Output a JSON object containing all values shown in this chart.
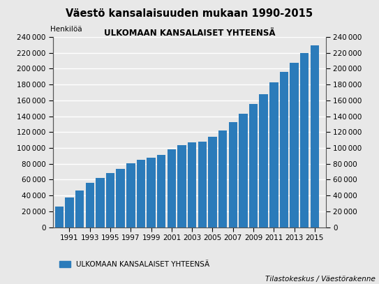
{
  "title": "Väestö kansalaisuuden mukaan 1990-2015",
  "subtitle": "ULKOMAAN KANSALAISET YHTEENSÄ",
  "ylabel_left": "Henkilöä",
  "source": "Tilastokeskus / Väestörakenne",
  "legend_label": "ULKOMAAN KANSALAISET YHTEENSÄ",
  "bar_color": "#2b7bba",
  "years": [
    1990,
    1991,
    1992,
    1993,
    1994,
    1995,
    1996,
    1997,
    1998,
    1999,
    2000,
    2001,
    2002,
    2003,
    2004,
    2005,
    2006,
    2007,
    2008,
    2009,
    2010,
    2011,
    2012,
    2013,
    2014,
    2015
  ],
  "values": [
    26300,
    37600,
    46300,
    55600,
    62000,
    68600,
    73800,
    80600,
    85100,
    87700,
    91100,
    98600,
    103700,
    107100,
    107700,
    113900,
    121700,
    132700,
    143200,
    155700,
    167900,
    183100,
    195500,
    207400,
    219700,
    229600
  ],
  "ylim": [
    0,
    240000
  ],
  "yticks": [
    0,
    20000,
    40000,
    60000,
    80000,
    100000,
    120000,
    140000,
    160000,
    180000,
    200000,
    220000,
    240000
  ],
  "xtick_years": [
    1991,
    1993,
    1995,
    1997,
    1999,
    2001,
    2003,
    2005,
    2007,
    2009,
    2011,
    2013,
    2015
  ],
  "background_color": "#e8e8e8",
  "plot_bg_color": "#e8e8e8",
  "grid_color": "#ffffff"
}
